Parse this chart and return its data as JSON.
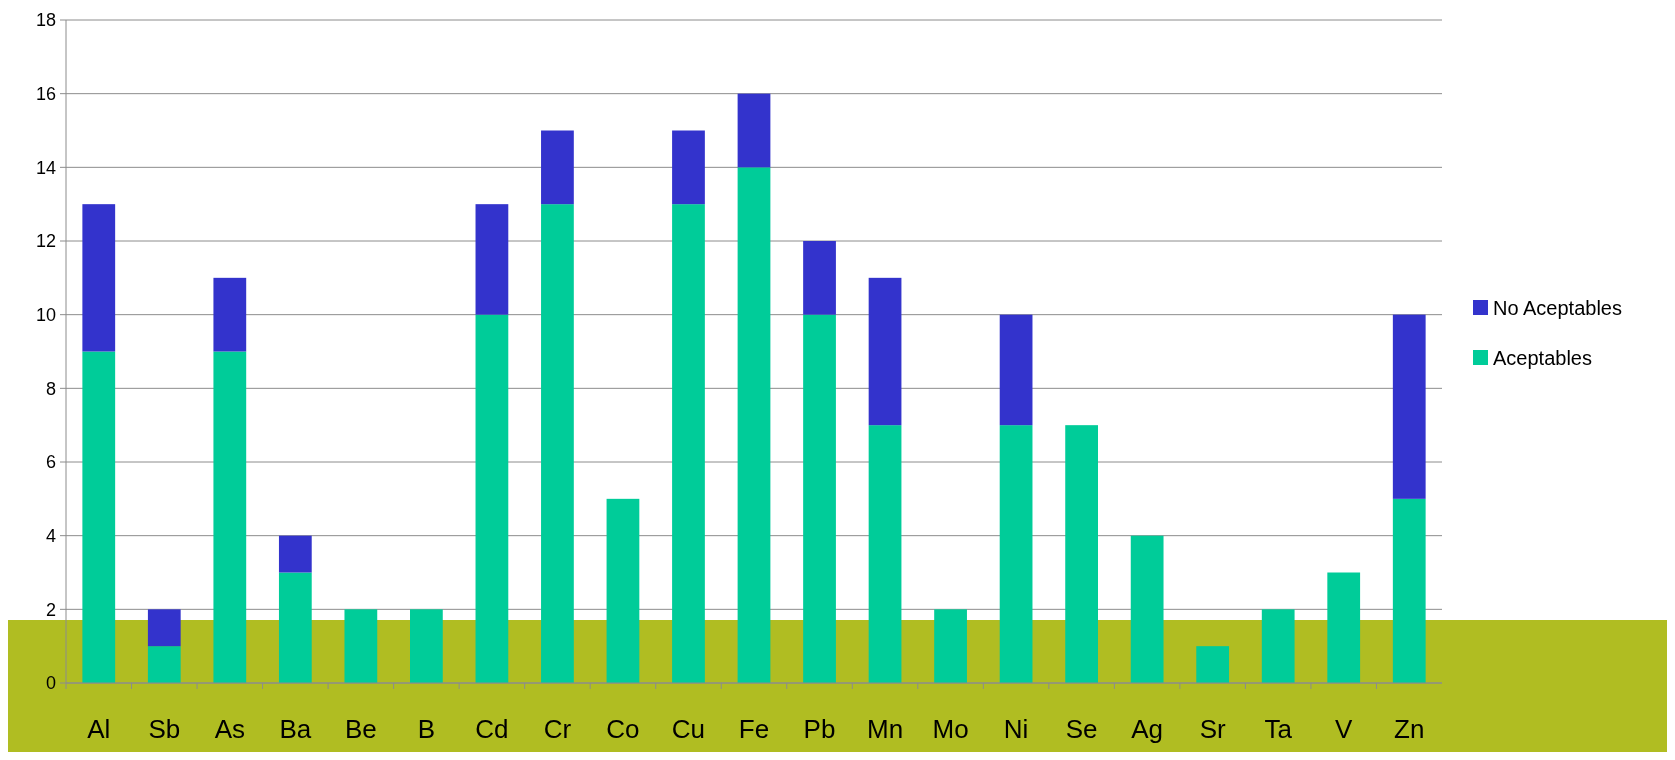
{
  "chart_data": {
    "type": "bar",
    "stacked": true,
    "categories": [
      "Al",
      "Sb",
      "As",
      "Ba",
      "Be",
      "B",
      "Cd",
      "Cr",
      "Co",
      "Cu",
      "Fe",
      "Pb",
      "Mn",
      "Mo",
      "Ni",
      "Se",
      "Ag",
      "Sr",
      "Ta",
      "V",
      "Zn"
    ],
    "series": [
      {
        "name": "Aceptables",
        "color": "#00cc99",
        "values": [
          9,
          1,
          9,
          3,
          2,
          2,
          10,
          13,
          5,
          13,
          14,
          10,
          7,
          2,
          7,
          7,
          4,
          1,
          2,
          3,
          5
        ]
      },
      {
        "name": "No Aceptables",
        "color": "#3333cc",
        "values": [
          4,
          1,
          2,
          1,
          0,
          0,
          3,
          2,
          0,
          2,
          2,
          2,
          4,
          0,
          3,
          0,
          0,
          0,
          0,
          0,
          5
        ]
      }
    ],
    "ylim": [
      0,
      18
    ],
    "yticks": [
      0,
      2,
      4,
      6,
      8,
      10,
      12,
      14,
      16,
      18
    ],
    "grid": "y",
    "legend": "right"
  }
}
